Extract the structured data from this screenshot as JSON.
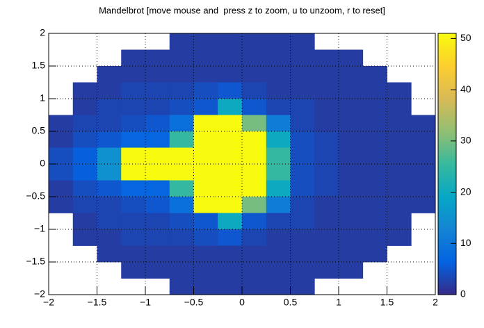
{
  "chart_data": {
    "type": "heatmap",
    "title": "Mandelbrot [move mouse and  press z to zoom, u to unzoom, r to reset]",
    "xlim": [
      -2,
      2
    ],
    "ylim": [
      -2,
      2
    ],
    "zlim": [
      0,
      51
    ],
    "xticks": [
      {
        "value": -2,
        "label": "−2"
      },
      {
        "value": -1.5,
        "label": "−1.5"
      },
      {
        "value": -1,
        "label": "−1"
      },
      {
        "value": -0.5,
        "label": "−0.5"
      },
      0,
      0.5,
      1,
      1.5,
      2
    ],
    "yticks": [
      {
        "value": -2,
        "label": "−2"
      },
      {
        "value": -1.5,
        "label": "−1.5"
      },
      {
        "value": -1,
        "label": "−1"
      },
      {
        "value": -0.5,
        "label": "−0.5"
      },
      0,
      0.5,
      1,
      1.5,
      2
    ],
    "zticks": [
      0,
      10,
      20,
      30,
      40,
      50
    ],
    "grid": true,
    "palette": [
      "#352a87",
      "#0363e1",
      "#1485d4",
      "#06a7c6",
      "#38b99e",
      "#92bf73",
      "#d9ba56",
      "#fcce2e",
      "#f9fb0e"
    ],
    "values": [
      [
        null,
        null,
        null,
        null,
        null,
        2,
        2,
        2,
        2,
        2,
        2,
        null,
        null,
        null,
        null,
        null
      ],
      [
        null,
        null,
        null,
        2,
        2,
        2,
        2,
        2,
        2,
        2,
        2,
        2,
        2,
        null,
        null,
        null
      ],
      [
        null,
        null,
        2,
        2,
        2,
        2,
        2,
        2,
        2,
        2,
        2,
        2,
        2,
        2,
        null,
        null
      ],
      [
        null,
        2,
        2,
        3,
        3,
        3,
        4,
        5,
        3,
        2,
        2,
        2,
        2,
        2,
        2,
        null
      ],
      [
        null,
        2,
        3,
        3,
        3,
        4,
        5,
        20,
        5,
        3,
        3,
        2,
        2,
        2,
        2,
        null
      ],
      [
        2,
        3,
        3,
        4,
        5,
        9,
        51,
        51,
        30,
        11,
        3,
        2,
        2,
        2,
        2,
        2
      ],
      [
        2,
        4,
        5,
        7,
        7,
        25,
        51,
        51,
        51,
        20,
        4,
        3,
        2,
        2,
        2,
        2
      ],
      [
        4,
        6,
        15,
        51,
        51,
        51,
        51,
        51,
        51,
        25,
        4,
        3,
        2,
        2,
        2,
        2
      ],
      [
        4,
        6,
        15,
        51,
        51,
        51,
        51,
        51,
        51,
        25,
        4,
        3,
        2,
        2,
        2,
        2
      ],
      [
        2,
        4,
        5,
        7,
        7,
        25,
        51,
        51,
        51,
        20,
        4,
        3,
        2,
        2,
        2,
        2
      ],
      [
        2,
        3,
        3,
        4,
        5,
        9,
        51,
        51,
        30,
        11,
        3,
        2,
        2,
        2,
        2,
        2
      ],
      [
        null,
        2,
        3,
        3,
        3,
        4,
        5,
        20,
        5,
        3,
        3,
        2,
        2,
        2,
        2,
        null
      ],
      [
        null,
        2,
        2,
        3,
        3,
        3,
        4,
        5,
        3,
        2,
        2,
        2,
        2,
        2,
        2,
        null
      ],
      [
        null,
        null,
        2,
        2,
        2,
        2,
        2,
        2,
        2,
        2,
        2,
        2,
        2,
        2,
        null,
        null
      ],
      [
        null,
        null,
        null,
        2,
        2,
        2,
        2,
        2,
        2,
        2,
        2,
        2,
        2,
        null,
        null,
        null
      ],
      [
        null,
        null,
        null,
        null,
        null,
        2,
        2,
        2,
        2,
        2,
        2,
        null,
        null,
        null,
        null,
        null
      ]
    ]
  }
}
